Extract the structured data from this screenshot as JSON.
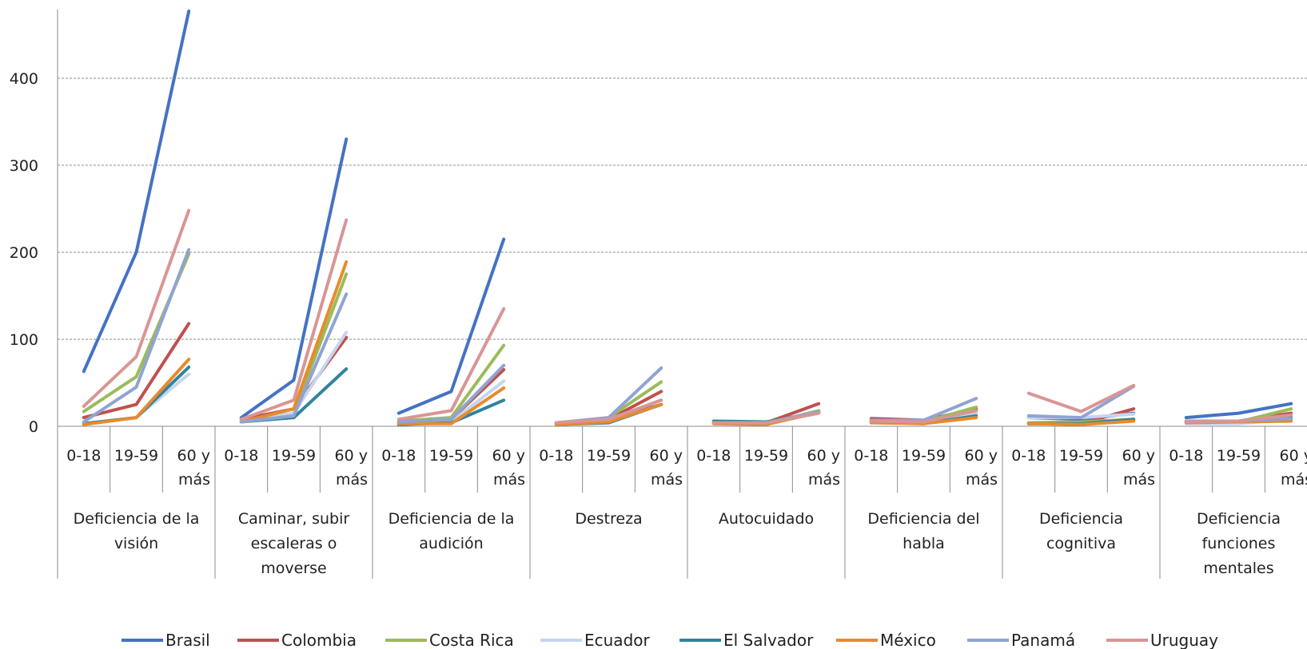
{
  "chart_data": {
    "type": "line",
    "y_ticks": [
      "0",
      "100",
      "200",
      "300",
      "400"
    ],
    "ylim": [
      0,
      477
    ],
    "grid": true,
    "legend_position": "bottom",
    "subcategories": [
      "0-18",
      "19-59",
      "60 y más"
    ],
    "groups": [
      {
        "label_lines": [
          "Deficiencia de la",
          "visión"
        ]
      },
      {
        "label_lines": [
          "Caminar, subir",
          "escaleras o",
          "moverse"
        ]
      },
      {
        "label_lines": [
          "Deficiencia de la",
          "audición"
        ]
      },
      {
        "label_lines": [
          "Destreza"
        ]
      },
      {
        "label_lines": [
          "Autocuidado"
        ]
      },
      {
        "label_lines": [
          "Deficiencia del",
          "habla"
        ]
      },
      {
        "label_lines": [
          "Deficiencia",
          "cognitiva"
        ]
      },
      {
        "label_lines": [
          "Deficiencia",
          "funciones",
          "mentales"
        ]
      }
    ],
    "series": [
      {
        "name": "Brasil",
        "color": "#4472c4",
        "values": [
          [
            63,
            200,
            477
          ],
          [
            10,
            53,
            330
          ],
          [
            15,
            40,
            215
          ],
          [
            3,
            8,
            25
          ],
          [
            5,
            4,
            17
          ],
          [
            7,
            5,
            20
          ],
          [
            10,
            8,
            15
          ],
          [
            10,
            15,
            26
          ]
        ]
      },
      {
        "name": "Colombia",
        "color": "#c0504d",
        "values": [
          [
            10,
            25,
            118
          ],
          [
            8,
            20,
            102
          ],
          [
            5,
            8,
            65
          ],
          [
            4,
            8,
            40
          ],
          [
            4,
            4,
            26
          ],
          [
            9,
            7,
            20
          ],
          [
            3,
            3,
            20
          ],
          [
            6,
            6,
            15
          ]
        ]
      },
      {
        "name": "Costa Rica",
        "color": "#9bbb59",
        "values": [
          [
            17,
            57,
            198
          ],
          [
            5,
            15,
            175
          ],
          [
            6,
            10,
            93
          ],
          [
            3,
            10,
            51
          ],
          [
            4,
            3,
            18
          ],
          [
            6,
            5,
            22
          ],
          [
            4,
            5,
            8
          ],
          [
            5,
            5,
            20
          ]
        ]
      },
      {
        "name": "Ecuador",
        "color": "#c5d5f0",
        "values": [
          [
            3,
            10,
            60
          ],
          [
            5,
            15,
            108
          ],
          [
            3,
            5,
            52
          ],
          [
            3,
            8,
            30
          ],
          [
            3,
            3,
            15
          ],
          [
            5,
            4,
            15
          ],
          [
            10,
            10,
            14
          ],
          [
            3,
            3,
            8
          ]
        ]
      },
      {
        "name": "El Salvador",
        "color": "#31849b",
        "values": [
          [
            3,
            10,
            68
          ],
          [
            5,
            10,
            66
          ],
          [
            2,
            4,
            30
          ],
          [
            2,
            4,
            25
          ],
          [
            6,
            5,
            16
          ],
          [
            5,
            3,
            12
          ],
          [
            3,
            3,
            8
          ],
          [
            5,
            5,
            10
          ]
        ]
      },
      {
        "name": "México",
        "color": "#e88a2e",
        "values": [
          [
            2,
            10,
            77
          ],
          [
            5,
            20,
            189
          ],
          [
            3,
            3,
            44
          ],
          [
            2,
            5,
            25
          ],
          [
            3,
            2,
            16
          ],
          [
            4,
            3,
            10
          ],
          [
            3,
            2,
            6
          ],
          [
            4,
            5,
            6
          ]
        ]
      },
      {
        "name": "Panamá",
        "color": "#8fa4d1",
        "values": [
          [
            5,
            45,
            203
          ],
          [
            5,
            12,
            152
          ],
          [
            5,
            8,
            70
          ],
          [
            4,
            10,
            67
          ],
          [
            4,
            4,
            17
          ],
          [
            7,
            7,
            32
          ],
          [
            12,
            10,
            46
          ],
          [
            6,
            6,
            9
          ]
        ]
      },
      {
        "name": "Uruguay",
        "color": "#d99594",
        "values": [
          [
            23,
            80,
            248
          ],
          [
            8,
            30,
            237
          ],
          [
            8,
            18,
            135
          ],
          [
            4,
            8,
            30
          ],
          [
            4,
            4,
            15
          ],
          [
            6,
            5,
            18
          ],
          [
            38,
            17,
            47
          ],
          [
            5,
            6,
            13
          ]
        ]
      }
    ]
  }
}
